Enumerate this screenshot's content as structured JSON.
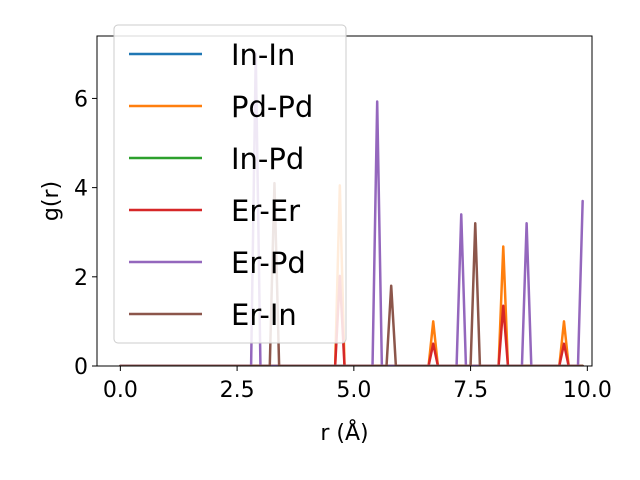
{
  "chart_data": {
    "type": "line",
    "xlabel": "r (Å)",
    "ylabel": "g(r)",
    "xlim": [
      -0.5,
      10.1
    ],
    "ylim": [
      0,
      7.4
    ],
    "xticks": [
      0.0,
      2.5,
      5.0,
      7.5,
      10.0
    ],
    "xtick_labels": [
      "0.0",
      "2.5",
      "5.0",
      "7.5",
      "10.0"
    ],
    "yticks": [
      0,
      2,
      4,
      6
    ],
    "ytick_labels": [
      "0",
      "2",
      "4",
      "6"
    ],
    "grid": false,
    "legend_position": "upper-left",
    "series": [
      {
        "name": "In-In",
        "color": "#1f77b4",
        "points": [
          [
            0.0,
            0
          ],
          [
            9.9,
            0
          ]
        ]
      },
      {
        "name": "Pd-Pd",
        "color": "#ff7f0e",
        "points": [
          [
            0.0,
            0
          ],
          [
            4.6,
            0
          ],
          [
            4.7,
            4.05
          ],
          [
            4.8,
            0
          ],
          [
            6.6,
            0
          ],
          [
            6.7,
            1.0
          ],
          [
            6.8,
            0
          ],
          [
            8.1,
            0
          ],
          [
            8.2,
            2.68
          ],
          [
            8.3,
            0
          ],
          [
            9.4,
            0
          ],
          [
            9.5,
            1.0
          ],
          [
            9.6,
            0
          ],
          [
            9.9,
            0
          ]
        ]
      },
      {
        "name": "In-Pd",
        "color": "#2ca02c",
        "points": [
          [
            0.0,
            0
          ],
          [
            9.9,
            0
          ]
        ]
      },
      {
        "name": "Er-Er",
        "color": "#d62728",
        "points": [
          [
            0.0,
            0
          ],
          [
            4.6,
            0
          ],
          [
            4.7,
            2.02
          ],
          [
            4.8,
            0
          ],
          [
            6.6,
            0
          ],
          [
            6.7,
            0.5
          ],
          [
            6.8,
            0
          ],
          [
            8.1,
            0
          ],
          [
            8.2,
            1.35
          ],
          [
            8.3,
            0
          ],
          [
            9.4,
            0
          ],
          [
            9.5,
            0.5
          ],
          [
            9.6,
            0
          ],
          [
            9.9,
            0
          ]
        ]
      },
      {
        "name": "Er-Pd",
        "color": "#9467bd",
        "points": [
          [
            0.0,
            0
          ],
          [
            2.8,
            0
          ],
          [
            2.9,
            7.0
          ],
          [
            3.0,
            0
          ],
          [
            5.4,
            0
          ],
          [
            5.5,
            5.93
          ],
          [
            5.6,
            0
          ],
          [
            7.2,
            0
          ],
          [
            7.3,
            3.4
          ],
          [
            7.4,
            0
          ],
          [
            8.6,
            0
          ],
          [
            8.7,
            3.2
          ],
          [
            8.8,
            0
          ],
          [
            9.8,
            0
          ],
          [
            9.9,
            3.7
          ]
        ]
      },
      {
        "name": "Er-In",
        "color": "#8c564b",
        "points": [
          [
            0.0,
            0
          ],
          [
            3.2,
            0
          ],
          [
            3.3,
            4.1
          ],
          [
            3.4,
            0
          ],
          [
            5.7,
            0
          ],
          [
            5.8,
            1.8
          ],
          [
            5.9,
            0
          ],
          [
            7.5,
            0
          ],
          [
            7.6,
            3.2
          ],
          [
            7.7,
            0
          ],
          [
            9.9,
            0
          ]
        ]
      }
    ]
  }
}
